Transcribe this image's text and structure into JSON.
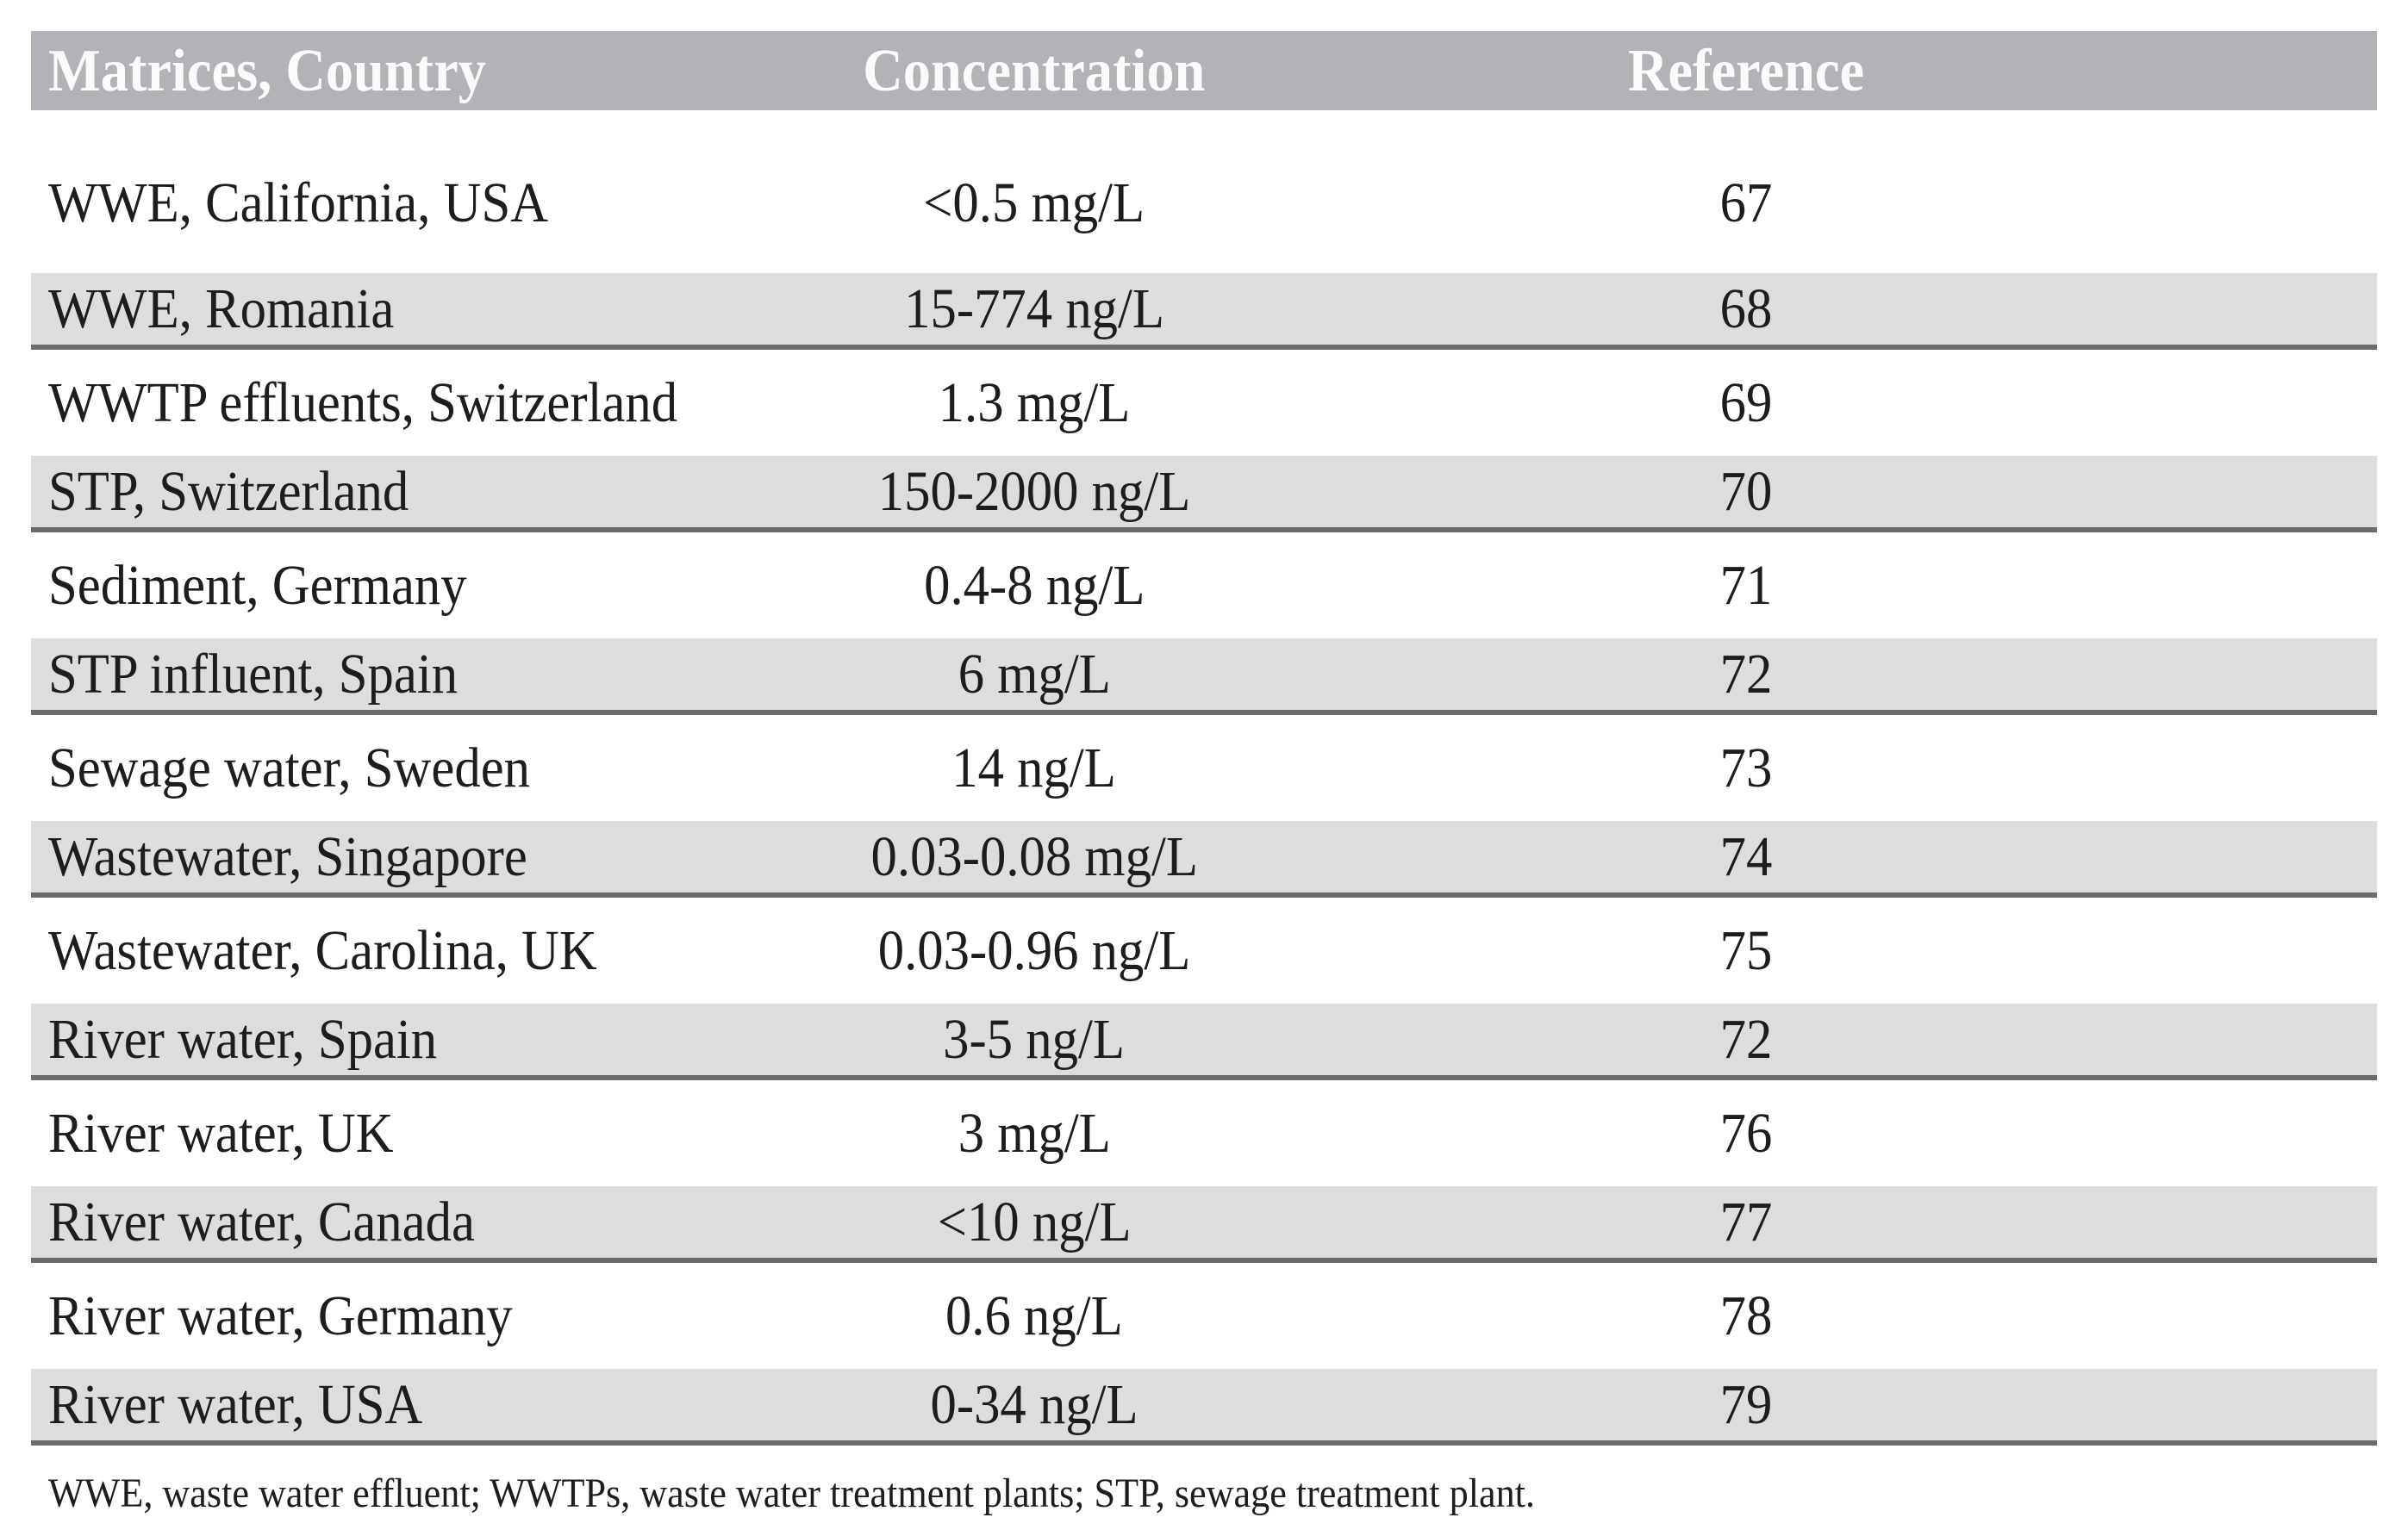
{
  "table": {
    "columns": {
      "matrices": "Matrices, Country",
      "concentration": "Concentration",
      "reference": "Reference"
    },
    "rows": [
      {
        "matrix": "WWE, California, USA",
        "concentration": "<0.5 mg/L",
        "reference": "67"
      },
      {
        "matrix": "WWE, Romania",
        "concentration": "15-774 ng/L",
        "reference": "68"
      },
      {
        "matrix": "WWTP effluents, Switzerland",
        "concentration": "1.3 mg/L",
        "reference": "69"
      },
      {
        "matrix": "STP, Switzerland",
        "concentration": "150-2000 ng/L",
        "reference": "70"
      },
      {
        "matrix": "Sediment, Germany",
        "concentration": "0.4-8 ng/L",
        "reference": "71"
      },
      {
        "matrix": "STP influent, Spain",
        "concentration": "6 mg/L",
        "reference": "72"
      },
      {
        "matrix": "Sewage water, Sweden",
        "concentration": "14 ng/L",
        "reference": "73"
      },
      {
        "matrix": "Wastewater, Singapore",
        "concentration": "0.03-0.08 mg/L",
        "reference": "74"
      },
      {
        "matrix": "Wastewater, Carolina, UK",
        "concentration": "0.03-0.96 ng/L",
        "reference": "75"
      },
      {
        "matrix": "River water, Spain",
        "concentration": "3-5 ng/L",
        "reference": "72"
      },
      {
        "matrix": "River water, UK",
        "concentration": "3 mg/L",
        "reference": "76"
      },
      {
        "matrix": "River water, Canada",
        "concentration": "<10 ng/L",
        "reference": "77"
      },
      {
        "matrix": "River water, Germany",
        "concentration": "0.6 ng/L",
        "reference": "78"
      },
      {
        "matrix": "River water, USA",
        "concentration": "0-34 ng/L",
        "reference": "79"
      }
    ],
    "footnote": "WWE, waste water effluent; WWTPs, waste water treatment plants; STP, sewage treatment plant."
  },
  "colors": {
    "header_band": "#b1b3b6",
    "shaded_row": "#dcddde",
    "separator_line": "#696b6d",
    "header_text": "#fbfbfc",
    "body_text": "#1d1d1f"
  }
}
